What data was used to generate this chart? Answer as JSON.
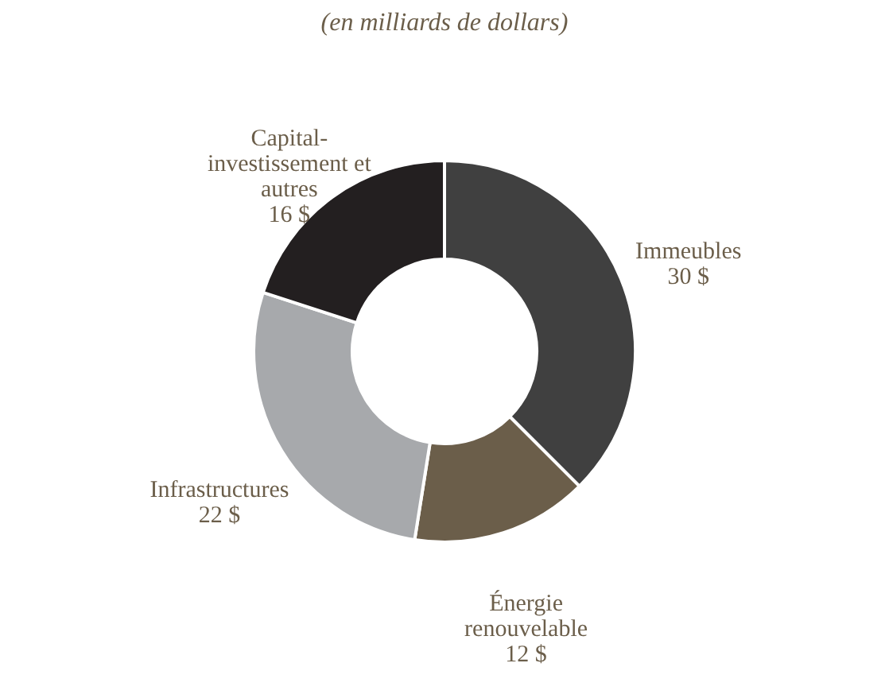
{
  "chart_data": {
    "type": "donut",
    "subtitle": "(en milliards de dollars)",
    "categories": [
      "Immeubles",
      "Énergie renouvelable",
      "Infrastructures",
      "Capital-investissement et autres"
    ],
    "values": [
      30,
      12,
      22,
      16
    ],
    "value_labels": [
      "30 $",
      "12 $",
      "22 $",
      "16 $"
    ],
    "colors": [
      "#404040",
      "#6b5e4a",
      "#a7a9ac",
      "#231f20"
    ],
    "legend": false
  }
}
